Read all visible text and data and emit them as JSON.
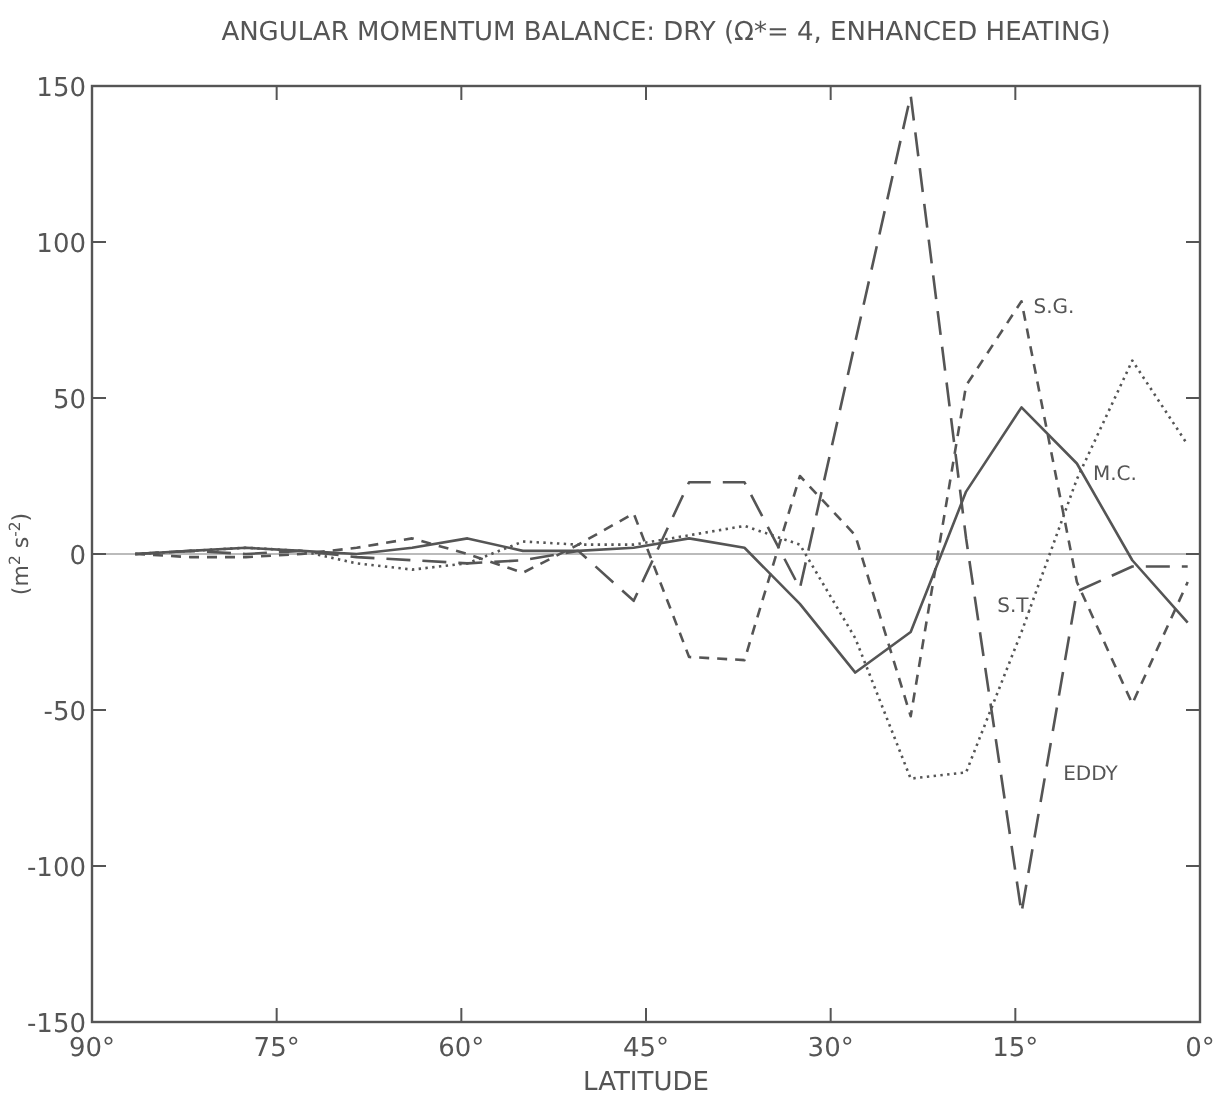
{
  "chart_data": {
    "type": "line",
    "title": "ANGULAR MOMENTUM BALANCE:  DRY (Ω*= 4, ENHANCED HEATING)",
    "xlabel": "LATITUDE",
    "ylabel": "(m$^{2}$ s$^{-2}$)",
    "x": [
      86.5,
      82,
      77.5,
      73,
      68.5,
      64,
      59.5,
      55,
      50.5,
      46,
      41.5,
      37,
      32.5,
      28,
      23.5,
      19,
      14.5,
      10,
      5.5,
      1
    ],
    "xlim": [
      90,
      0
    ],
    "xticks": [
      {
        "value": 90,
        "label": "90°"
      },
      {
        "value": 75,
        "label": "75°"
      },
      {
        "value": 60,
        "label": "60°"
      },
      {
        "value": 45,
        "label": "45°"
      },
      {
        "value": 30,
        "label": "30°"
      },
      {
        "value": 15,
        "label": "15°"
      },
      {
        "value": 0,
        "label": "0°"
      }
    ],
    "ylim": [
      -150,
      150
    ],
    "yticks": [
      -150,
      -100,
      -50,
      0,
      50,
      100,
      150
    ],
    "grid": false,
    "ref_lines": [
      {
        "axis": "y",
        "value": 0,
        "color": "#bbbbbb"
      }
    ],
    "series": [
      {
        "name": "S.G.",
        "color": "#555555",
        "line_style": "dashed",
        "values": [
          0,
          -1,
          -1,
          0,
          2,
          5,
          0,
          -6,
          3,
          13,
          -33,
          -34,
          25,
          6,
          -52,
          54,
          81,
          -9,
          -48,
          -9
        ]
      },
      {
        "name": "M.C.",
        "color": "#555555",
        "line_style": "solid",
        "values": [
          0,
          1,
          2,
          1,
          0,
          2,
          5,
          1,
          1,
          2,
          5,
          2,
          -16,
          -38,
          -25,
          20,
          47,
          29,
          -2,
          -22
        ]
      },
      {
        "name": "S.T.",
        "color": "#555555",
        "line_style": "dotted",
        "values": [
          0,
          1,
          2,
          1,
          -3,
          -5,
          -3,
          4,
          3,
          3,
          6,
          9,
          3,
          -27,
          -72,
          -70,
          -25,
          24,
          62,
          35
        ]
      },
      {
        "name": "EDDY",
        "color": "#555555",
        "line_style": "dashed",
        "values": [
          0,
          1,
          0,
          1,
          -1,
          -2,
          -3,
          -2,
          1,
          -15,
          23,
          23,
          -11,
          68,
          147,
          5,
          -115,
          -12,
          -4,
          -4
        ]
      }
    ]
  }
}
